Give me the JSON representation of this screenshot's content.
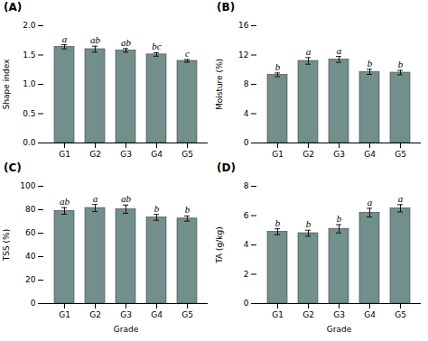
{
  "chart_data": [
    {
      "type": "bar",
      "title": "(A)",
      "ylabel": "Shape index",
      "categories": [
        "G1",
        "G2",
        "G3",
        "G4",
        "G5"
      ],
      "values": [
        1.64,
        1.6,
        1.58,
        1.51,
        1.4
      ],
      "errors": [
        0.035,
        0.05,
        0.03,
        0.03,
        0.022
      ],
      "annotations": [
        "a",
        "ab",
        "ab",
        "bc",
        "c"
      ],
      "color": "#718f8b",
      "ylim": [
        0.0,
        2.0
      ],
      "yticks": [
        {
          "value": 0,
          "label": "0.0"
        },
        0.5,
        {
          "value": 1,
          "label": "1.0"
        },
        1.5,
        {
          "value": 2,
          "label": "2.0"
        }
      ],
      "grid": false
    },
    {
      "type": "bar",
      "title": "(B)",
      "ylabel": "Moisture (%)",
      "categories": [
        "G1",
        "G2",
        "G3",
        "G4",
        "G5"
      ],
      "values": [
        9.3,
        11.2,
        11.4,
        9.7,
        9.6
      ],
      "errors": [
        0.25,
        0.45,
        0.4,
        0.35,
        0.3
      ],
      "annotations": [
        "b",
        "a",
        "a",
        "b",
        "b"
      ],
      "color": "#718f8b",
      "ylim": [
        0,
        16
      ],
      "yticks": [
        0,
        4,
        8,
        12,
        16
      ],
      "grid": false
    },
    {
      "type": "bar",
      "title": "(C)",
      "ylabel": "TSS (%)",
      "xlabel": "Grade",
      "categories": [
        "G1",
        "G2",
        "G3",
        "G4",
        "G5"
      ],
      "values": [
        79.0,
        81.5,
        80.5,
        73.5,
        72.5
      ],
      "errors": [
        2.8,
        3.0,
        3.5,
        2.5,
        2.2
      ],
      "annotations": [
        "ab",
        "a",
        "ab",
        "b",
        "b"
      ],
      "color": "#718f8b",
      "ylim": [
        0,
        100
      ],
      "yticks": [
        0,
        20,
        40,
        60,
        80,
        100
      ],
      "grid": false
    },
    {
      "type": "bar",
      "title": "(D)",
      "ylabel": "TA (g/kg)",
      "xlabel": "Grade",
      "categories": [
        "G1",
        "G2",
        "G3",
        "G4",
        "G5"
      ],
      "values": [
        4.9,
        4.8,
        5.1,
        6.2,
        6.5
      ],
      "errors": [
        0.2,
        0.2,
        0.28,
        0.3,
        0.25
      ],
      "annotations": [
        "b",
        "b",
        "b",
        "a",
        "a"
      ],
      "color": "#718f8b",
      "ylim": [
        0,
        8
      ],
      "yticks": [
        0,
        2,
        4,
        6,
        8
      ],
      "grid": false
    }
  ]
}
